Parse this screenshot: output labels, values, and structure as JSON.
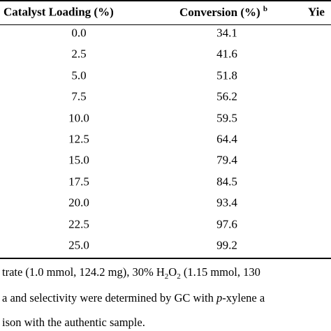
{
  "table": {
    "header": [
      {
        "text": "Catalyst Loading (%)"
      },
      {
        "text": "Conversion (%)",
        "note": "b"
      },
      {
        "text": "Yie"
      }
    ],
    "rows": [
      [
        "0.0",
        "34.1"
      ],
      [
        "2.5",
        "41.6"
      ],
      [
        "5.0",
        "51.8"
      ],
      [
        "7.5",
        "56.2"
      ],
      [
        "10.0",
        "59.5"
      ],
      [
        "12.5",
        "64.4"
      ],
      [
        "15.0",
        "79.4"
      ],
      [
        "17.5",
        "84.5"
      ],
      [
        "20.0",
        "93.4"
      ],
      [
        "22.5",
        "97.6"
      ],
      [
        "25.0",
        "99.2"
      ]
    ]
  },
  "footnotes": [
    [
      "trate (1.0 mmol, 124.2 mg), 30% H",
      "2",
      "O",
      "2",
      " (1.15 mmol, 130"
    ],
    [
      "a and selectivity were determined by GC with ",
      "p",
      "-xylene a"
    ],
    [
      "ison with the authentic sample."
    ]
  ]
}
